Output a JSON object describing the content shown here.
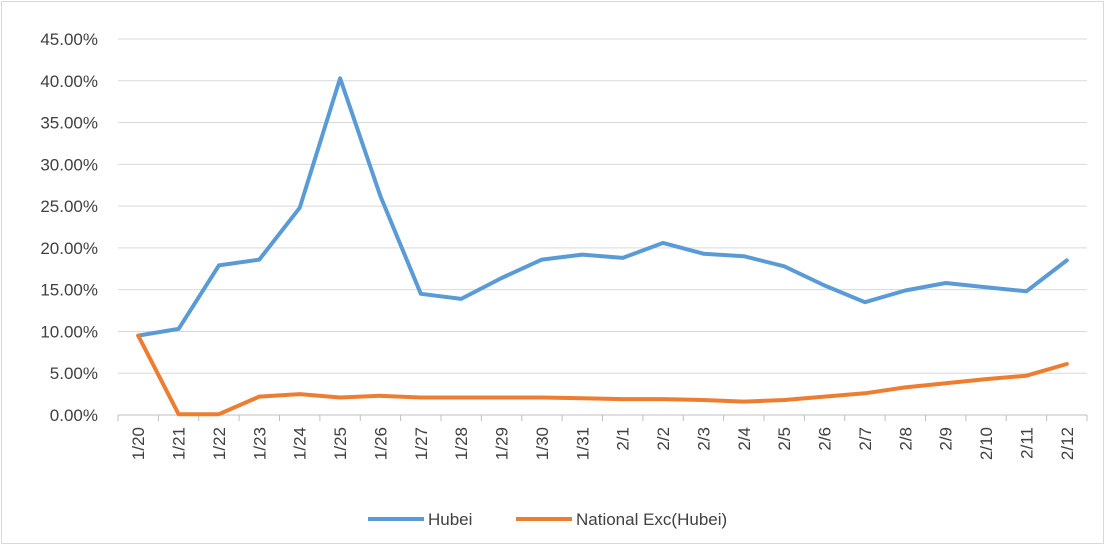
{
  "chart_data": {
    "type": "line",
    "title": "",
    "xlabel": "",
    "ylabel": "",
    "categories": [
      "1/20",
      "1/21",
      "1/22",
      "1/23",
      "1/24",
      "1/25",
      "1/26",
      "1/27",
      "1/28",
      "1/29",
      "1/30",
      "1/31",
      "2/1",
      "2/2",
      "2/3",
      "2/4",
      "2/5",
      "2/6",
      "2/7",
      "2/8",
      "2/9",
      "2/10",
      "2/11",
      "2/12"
    ],
    "y_tick_labels": [
      "0.00%",
      "5.00%",
      "10.00%",
      "15.00%",
      "20.00%",
      "25.00%",
      "30.00%",
      "35.00%",
      "40.00%",
      "45.00%"
    ],
    "ylim": [
      0,
      45
    ],
    "y_unit": "%",
    "grid": true,
    "legend_position": "bottom",
    "series": [
      {
        "name": "Hubei",
        "color": "#5b9bd5",
        "values": [
          9.5,
          10.3,
          17.9,
          18.6,
          24.8,
          40.3,
          26.2,
          14.5,
          13.9,
          16.4,
          18.6,
          19.2,
          18.8,
          20.6,
          19.3,
          19.0,
          17.8,
          15.5,
          13.5,
          14.9,
          15.8,
          15.3,
          14.8,
          18.5
        ]
      },
      {
        "name": "National Exc(Hubei)",
        "color": "#ed7d31",
        "values": [
          9.5,
          0.1,
          0.1,
          2.2,
          2.5,
          2.1,
          2.3,
          2.1,
          2.1,
          2.1,
          2.1,
          2.0,
          1.9,
          1.9,
          1.8,
          1.6,
          1.8,
          2.2,
          2.6,
          3.3,
          3.8,
          4.3,
          4.7,
          6.1
        ]
      }
    ]
  }
}
